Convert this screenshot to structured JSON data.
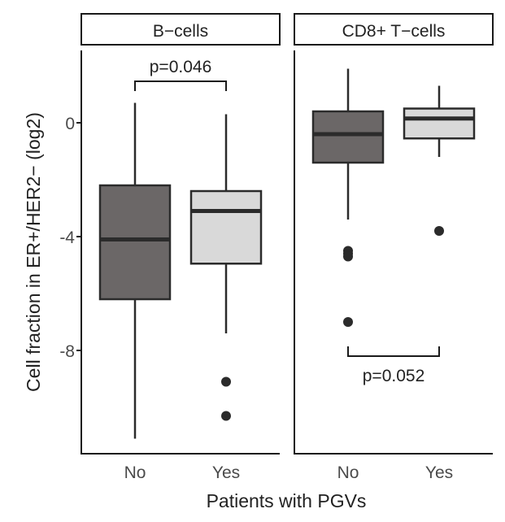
{
  "chart_data": {
    "type": "box",
    "ylabel": "Cell fraction in ER+/HER2− (log2)",
    "xlabel": "Patients with PGVs",
    "ylim": [
      -11.7,
      2.3
    ],
    "y_ticks": [
      0,
      -4,
      -8
    ],
    "y_tick_labels": [
      "0",
      "-4",
      "-8"
    ],
    "categories": [
      "No",
      "Yes"
    ],
    "colors": {
      "No": "#6b6767",
      "Yes": "#d9d9d9",
      "outline": "#2b2b2b"
    },
    "grid": false,
    "panels": [
      {
        "name": "B−cells",
        "boxes": [
          {
            "category": "No",
            "min": -11.1,
            "q1": -6.2,
            "median": -4.1,
            "q3": -2.2,
            "max": 0.7,
            "outliers": []
          },
          {
            "category": "Yes",
            "min": -7.4,
            "q1": -4.95,
            "median": -3.1,
            "q3": -2.4,
            "max": 0.3,
            "outliers": [
              -9.1,
              -10.3
            ]
          }
        ],
        "annotation": {
          "text": "p=0.046",
          "position": "top"
        }
      },
      {
        "name": "CD8+ T−cells",
        "boxes": [
          {
            "category": "No",
            "min": -3.4,
            "q1": -1.4,
            "median": -0.4,
            "q3": 0.4,
            "max": 1.9,
            "outliers": [
              -4.5,
              -4.6,
              -4.7,
              -7.0
            ]
          },
          {
            "category": "Yes",
            "min": -1.2,
            "q1": -0.55,
            "median": 0.15,
            "q3": 0.5,
            "max": 1.3,
            "outliers": [
              -3.8
            ]
          }
        ],
        "annotation": {
          "text": "p=0.052",
          "position": "bottom"
        }
      }
    ]
  }
}
